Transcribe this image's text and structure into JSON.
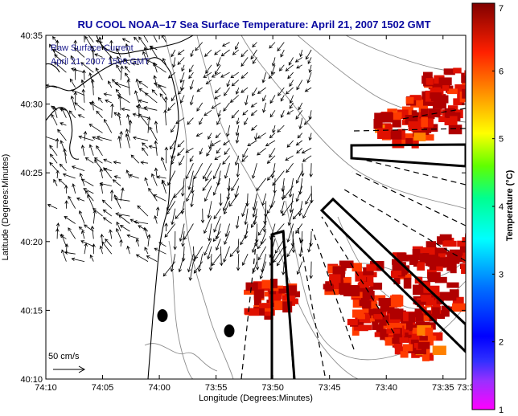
{
  "chart_data": {
    "type": "map",
    "title": "RU COOL  NOAA–17  Sea Surface Temperature:  April 21, 2007 1502 GMT",
    "xlabel": "Longitude (Degrees:Minutes)",
    "ylabel": "Latitude (Degrees:Minutes)",
    "xlim_minutes": [
      -250,
      -213
    ],
    "ylim_minutes": [
      2410,
      2435
    ],
    "x_ticks": [
      {
        "label": "74:10",
        "value": -250
      },
      {
        "label": "74:05",
        "value": -245
      },
      {
        "label": "74:00",
        "value": -240
      },
      {
        "label": "73:55",
        "value": -235
      },
      {
        "label": "73:50",
        "value": -230
      },
      {
        "label": "73:45",
        "value": -225
      },
      {
        "label": "73:40",
        "value": -220
      },
      {
        "label": "73:35",
        "value": -215
      },
      {
        "label": "73:3",
        "value": -213
      }
    ],
    "y_ticks": [
      {
        "label": "40:10",
        "value": 2410
      },
      {
        "label": "40:15",
        "value": 2415
      },
      {
        "label": "40:20",
        "value": 2420
      },
      {
        "label": "40:25",
        "value": 2425
      },
      {
        "label": "40:30",
        "value": 2430
      },
      {
        "label": "40:35",
        "value": 2435
      }
    ],
    "legend_lines": [
      "Raw Surface Current",
      "April 21, 2007 1500 GMT"
    ],
    "scale_label": "50 cm/s",
    "colorbar": {
      "label": "Temperature (°C)",
      "min": 1,
      "max": 7,
      "ticks": [
        "1",
        "2",
        "3",
        "4",
        "5",
        "6",
        "7"
      ],
      "colormap": [
        "#ff00ff",
        "#6a00ff",
        "#0000ff",
        "#0080ff",
        "#00ffff",
        "#00ff80",
        "#80ff00",
        "#ffff00",
        "#ff8000",
        "#ff0000",
        "#800000"
      ]
    },
    "sst_patches": [
      {
        "lon": -216.5,
        "lat": 2429.5,
        "temp": 6.4
      },
      {
        "lon": -215.0,
        "lat": 2431.5,
        "temp": 6.5
      },
      {
        "lon": -219.0,
        "lat": 2428.5,
        "temp": 6.2
      },
      {
        "lon": -221.5,
        "lat": 2415.0,
        "temp": 6.3
      },
      {
        "lon": -219.5,
        "lat": 2414.0,
        "temp": 6.5
      },
      {
        "lon": -218.0,
        "lat": 2413.0,
        "temp": 6.2
      },
      {
        "lon": -216.0,
        "lat": 2416.0,
        "temp": 6.4
      },
      {
        "lon": -214.5,
        "lat": 2419.5,
        "temp": 6.6
      },
      {
        "lon": -217.5,
        "lat": 2418.5,
        "temp": 6.5
      },
      {
        "lon": -223.5,
        "lat": 2417.5,
        "temp": 6.4
      },
      {
        "lon": -230.8,
        "lat": 2416.2,
        "temp": 6.3
      }
    ],
    "buoys": [
      {
        "lon": -239.0,
        "lat": 2414.4
      },
      {
        "lon": -232.2,
        "lat": 2413.2
      }
    ],
    "vector_field": {
      "lon_range": [
        -250,
        -226
      ],
      "lat_range": [
        2418,
        2435
      ],
      "note": ""
    }
  },
  "colors": {
    "title": "#0a0aa0",
    "legend": "#1a1a8c",
    "contour": "#8c8c8c",
    "coast": "#000000",
    "buoy": "#000000"
  }
}
